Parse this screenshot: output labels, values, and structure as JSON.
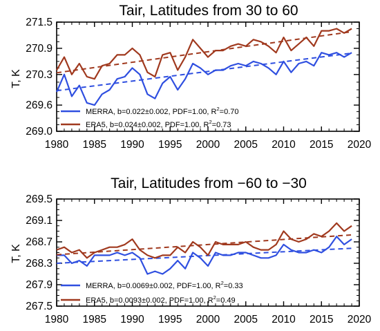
{
  "colors": {
    "merra": "#2f4fe0",
    "era5": "#a0391e",
    "axis": "#000000"
  },
  "chart_data": [
    {
      "type": "line",
      "title": "Tair, Latitudes from 30 to 60",
      "ylabel": "T, K",
      "xlabel": "",
      "xlim": [
        1980,
        2020
      ],
      "ylim": [
        269.0,
        271.5
      ],
      "xticks": [
        "1980",
        "1985",
        "1990",
        "1995",
        "2000",
        "2005",
        "2010",
        "2015",
        "2020"
      ],
      "yticks": [
        "269.0",
        "269.6",
        "270.3",
        "270.9",
        "271.5"
      ],
      "yticks_values": [
        269.0,
        269.6,
        270.3,
        270.9,
        271.5
      ],
      "legend_position": "bottom-left",
      "x": [
        1980,
        1981,
        1982,
        1983,
        1984,
        1985,
        1986,
        1987,
        1988,
        1989,
        1990,
        1991,
        1992,
        1993,
        1994,
        1995,
        1996,
        1997,
        1998,
        1999,
        2000,
        2001,
        2002,
        2003,
        2004,
        2005,
        2006,
        2007,
        2008,
        2009,
        2010,
        2011,
        2012,
        2013,
        2014,
        2015,
        2016,
        2017,
        2018,
        2019
      ],
      "series": [
        {
          "key": "merra",
          "legend_main": "MERRA, b=0.022±0.002, PDF=1.00, R",
          "legend_sup": "2",
          "legend_tail": "=0.70",
          "values": [
            269.9,
            270.3,
            269.8,
            270.05,
            269.65,
            269.6,
            269.85,
            269.95,
            270.2,
            270.25,
            270.45,
            270.3,
            269.85,
            269.75,
            270.1,
            270.25,
            269.95,
            270.2,
            270.55,
            270.45,
            270.3,
            270.4,
            270.4,
            270.5,
            270.55,
            270.5,
            270.6,
            270.55,
            270.45,
            270.3,
            270.6,
            270.35,
            270.55,
            270.6,
            270.5,
            270.8,
            270.75,
            270.8,
            270.7,
            270.8
          ],
          "trend": [
            269.93,
            270.79
          ]
        },
        {
          "key": "era5",
          "legend_main": "ERA5,   b=0.024±0.002, PDF=1.00, R",
          "legend_sup": "2",
          "legend_tail": "=0.73",
          "values": [
            270.4,
            270.7,
            270.3,
            270.55,
            270.25,
            270.2,
            270.5,
            270.55,
            270.75,
            270.75,
            270.9,
            270.75,
            270.35,
            270.25,
            270.75,
            270.8,
            270.4,
            270.7,
            271.1,
            270.9,
            270.7,
            270.85,
            270.85,
            270.95,
            271.0,
            270.95,
            271.1,
            271.05,
            270.95,
            270.8,
            271.15,
            270.85,
            271.0,
            271.15,
            270.95,
            271.3,
            271.3,
            271.35,
            271.25,
            271.35
          ],
          "trend": [
            270.34,
            271.28
          ]
        }
      ]
    },
    {
      "type": "line",
      "title": "Tair, Latitudes from −60 to −30",
      "ylabel": "T, K",
      "xlabel": "",
      "xlim": [
        1980,
        2020
      ],
      "ylim": [
        267.5,
        269.5
      ],
      "xticks": [
        "1980",
        "1985",
        "1990",
        "1995",
        "2000",
        "2005",
        "2010",
        "2015",
        "2020"
      ],
      "yticks": [
        "267.5",
        "267.9",
        "268.3",
        "268.7",
        "269.1",
        "269.5"
      ],
      "yticks_values": [
        267.5,
        267.9,
        268.3,
        268.7,
        269.1,
        269.5
      ],
      "legend_position": "bottom-left",
      "x": [
        1980,
        1981,
        1982,
        1983,
        1984,
        1985,
        1986,
        1987,
        1988,
        1989,
        1990,
        1991,
        1992,
        1993,
        1994,
        1995,
        1996,
        1997,
        1998,
        1999,
        2000,
        2001,
        2002,
        2003,
        2004,
        2005,
        2006,
        2007,
        2008,
        2009,
        2010,
        2011,
        2012,
        2013,
        2014,
        2015,
        2016,
        2017,
        2018,
        2019
      ],
      "series": [
        {
          "key": "merra",
          "legend_main": "MERRA, b=0.0069±0.002, PDF=1.00, R",
          "legend_sup": "2",
          "legend_tail": "=0.33",
          "values": [
            268.45,
            268.45,
            268.3,
            268.35,
            268.25,
            268.45,
            268.45,
            268.45,
            268.5,
            268.45,
            268.5,
            268.4,
            268.1,
            268.15,
            268.1,
            268.2,
            268.35,
            268.2,
            268.5,
            268.4,
            268.25,
            268.5,
            268.45,
            268.45,
            268.5,
            268.5,
            268.45,
            268.4,
            268.4,
            268.45,
            268.65,
            268.55,
            268.5,
            268.5,
            268.55,
            268.5,
            268.6,
            268.8,
            268.65,
            268.75
          ],
          "trend": [
            268.3,
            268.58
          ]
        },
        {
          "key": "era5",
          "legend_main": "ERA5,   b=0.0093±0.002, PDF=1.00, R",
          "legend_sup": "2",
          "legend_tail": "=0.49",
          "values": [
            268.55,
            268.6,
            268.5,
            268.55,
            268.4,
            268.5,
            268.55,
            268.6,
            268.6,
            268.65,
            268.75,
            268.55,
            268.45,
            268.4,
            268.45,
            268.45,
            268.6,
            268.5,
            268.7,
            268.6,
            268.45,
            268.7,
            268.65,
            268.65,
            268.65,
            268.7,
            268.6,
            268.55,
            268.55,
            268.65,
            268.9,
            268.75,
            268.7,
            268.75,
            268.85,
            268.8,
            268.9,
            269.05,
            268.9,
            269.0
          ],
          "trend": [
            268.46,
            268.83
          ]
        }
      ]
    }
  ]
}
